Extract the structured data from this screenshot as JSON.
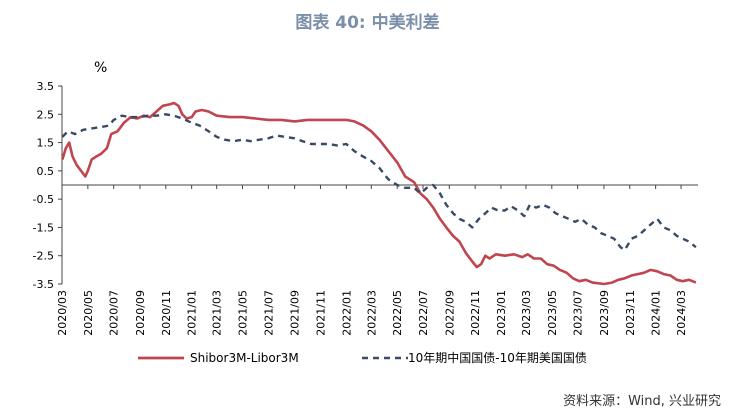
{
  "title": "图表 40: 中美利差",
  "source": "资料来源：Wind, 兴业研究",
  "chart_data": {
    "type": "line",
    "unit": "%",
    "ylim": [
      -3.5,
      3.5
    ],
    "yticks": [
      3.5,
      2.5,
      1.5,
      0.5,
      -0.5,
      -1.5,
      -2.5,
      -3.5
    ],
    "xlim": [
      "2020-03",
      "2024-04"
    ],
    "xticks": [
      "2020/03",
      "2020/05",
      "2020/07",
      "2020/09",
      "2020/11",
      "2021/01",
      "2021/03",
      "2021/05",
      "2021/07",
      "2021/09",
      "2021/11",
      "2022/01",
      "2022/03",
      "2022/05",
      "2022/07",
      "2022/09",
      "2022/11",
      "2023/01",
      "2023/03",
      "2023/05",
      "2023/07",
      "2023/09",
      "2023/11",
      "2024/01",
      "2024/03"
    ],
    "series": [
      {
        "name": "Shibor3M-Libor3M",
        "color": "#c1454f",
        "style": "solid",
        "points": [
          [
            "2020-03-02",
            0.9
          ],
          [
            "2020-03-10",
            1.3
          ],
          [
            "2020-03-18",
            1.5
          ],
          [
            "2020-03-26",
            1.0
          ],
          [
            "2020-04-05",
            0.7
          ],
          [
            "2020-04-15",
            0.5
          ],
          [
            "2020-04-25",
            0.3
          ],
          [
            "2020-05-01",
            0.5
          ],
          [
            "2020-05-10",
            0.9
          ],
          [
            "2020-05-20",
            1.0
          ],
          [
            "2020-06-01",
            1.1
          ],
          [
            "2020-06-15",
            1.3
          ],
          [
            "2020-06-25",
            1.8
          ],
          [
            "2020-07-10",
            1.9
          ],
          [
            "2020-07-25",
            2.2
          ],
          [
            "2020-08-10",
            2.4
          ],
          [
            "2020-08-25",
            2.35
          ],
          [
            "2020-09-10",
            2.45
          ],
          [
            "2020-09-25",
            2.4
          ],
          [
            "2020-10-10",
            2.6
          ],
          [
            "2020-10-25",
            2.8
          ],
          [
            "2020-11-10",
            2.85
          ],
          [
            "2020-11-20",
            2.9
          ],
          [
            "2020-12-01",
            2.8
          ],
          [
            "2020-12-10",
            2.5
          ],
          [
            "2020-12-20",
            2.35
          ],
          [
            "2021-01-01",
            2.4
          ],
          [
            "2021-01-10",
            2.6
          ],
          [
            "2021-01-25",
            2.65
          ],
          [
            "2021-02-10",
            2.6
          ],
          [
            "2021-03-01",
            2.45
          ],
          [
            "2021-04-01",
            2.4
          ],
          [
            "2021-05-01",
            2.4
          ],
          [
            "2021-06-01",
            2.35
          ],
          [
            "2021-07-01",
            2.3
          ],
          [
            "2021-08-01",
            2.3
          ],
          [
            "2021-09-01",
            2.25
          ],
          [
            "2021-10-01",
            2.3
          ],
          [
            "2021-11-01",
            2.3
          ],
          [
            "2021-12-01",
            2.3
          ],
          [
            "2022-01-01",
            2.3
          ],
          [
            "2022-01-20",
            2.25
          ],
          [
            "2022-02-10",
            2.1
          ],
          [
            "2022-03-01",
            1.9
          ],
          [
            "2022-03-20",
            1.6
          ],
          [
            "2022-04-10",
            1.2
          ],
          [
            "2022-05-01",
            0.8
          ],
          [
            "2022-05-20",
            0.3
          ],
          [
            "2022-06-10",
            0.1
          ],
          [
            "2022-06-25",
            -0.3
          ],
          [
            "2022-07-10",
            -0.5
          ],
          [
            "2022-07-25",
            -0.8
          ],
          [
            "2022-08-10",
            -1.2
          ],
          [
            "2022-08-25",
            -1.5
          ],
          [
            "2022-09-10",
            -1.8
          ],
          [
            "2022-09-25",
            -2.0
          ],
          [
            "2022-10-10",
            -2.4
          ],
          [
            "2022-10-25",
            -2.7
          ],
          [
            "2022-11-05",
            -2.9
          ],
          [
            "2022-11-15",
            -2.8
          ],
          [
            "2022-11-25",
            -2.5
          ],
          [
            "2022-12-05",
            -2.6
          ],
          [
            "2022-12-20",
            -2.45
          ],
          [
            "2023-01-10",
            -2.5
          ],
          [
            "2023-02-01",
            -2.45
          ],
          [
            "2023-02-20",
            -2.55
          ],
          [
            "2023-03-05",
            -2.45
          ],
          [
            "2023-03-20",
            -2.6
          ],
          [
            "2023-04-05",
            -2.6
          ],
          [
            "2023-04-20",
            -2.8
          ],
          [
            "2023-05-05",
            -2.85
          ],
          [
            "2023-05-20",
            -3.0
          ],
          [
            "2023-06-05",
            -3.1
          ],
          [
            "2023-06-20",
            -3.3
          ],
          [
            "2023-07-05",
            -3.4
          ],
          [
            "2023-07-20",
            -3.35
          ],
          [
            "2023-08-05",
            -3.45
          ],
          [
            "2023-09-01",
            -3.5
          ],
          [
            "2023-09-20",
            -3.45
          ],
          [
            "2023-10-05",
            -3.35
          ],
          [
            "2023-10-20",
            -3.3
          ],
          [
            "2023-11-05",
            -3.2
          ],
          [
            "2023-11-20",
            -3.15
          ],
          [
            "2023-12-05",
            -3.1
          ],
          [
            "2023-12-20",
            -3.0
          ],
          [
            "2024-01-05",
            -3.05
          ],
          [
            "2024-01-20",
            -3.15
          ],
          [
            "2024-02-05",
            -3.2
          ],
          [
            "2024-02-20",
            -3.35
          ],
          [
            "2024-03-05",
            -3.4
          ],
          [
            "2024-03-20",
            -3.35
          ],
          [
            "2024-04-05",
            -3.45
          ]
        ]
      },
      {
        "name": "10年期中国国债-10年期美国国债",
        "color": "#3a4a66",
        "style": "dashed",
        "points": [
          [
            "2020-03-02",
            1.7
          ],
          [
            "2020-03-15",
            1.9
          ],
          [
            "2020-04-01",
            1.8
          ],
          [
            "2020-04-20",
            1.95
          ],
          [
            "2020-05-10",
            2.0
          ],
          [
            "2020-06-01",
            2.05
          ],
          [
            "2020-06-20",
            2.1
          ],
          [
            "2020-07-01",
            2.3
          ],
          [
            "2020-07-20",
            2.45
          ],
          [
            "2020-08-10",
            2.4
          ],
          [
            "2020-09-01",
            2.4
          ],
          [
            "2020-09-20",
            2.45
          ],
          [
            "2020-10-10",
            2.45
          ],
          [
            "2020-11-01",
            2.5
          ],
          [
            "2020-11-20",
            2.45
          ],
          [
            "2020-12-10",
            2.35
          ],
          [
            "2021-01-01",
            2.2
          ],
          [
            "2021-01-20",
            2.1
          ],
          [
            "2021-02-10",
            1.9
          ],
          [
            "2021-03-01",
            1.7
          ],
          [
            "2021-03-20",
            1.6
          ],
          [
            "2021-04-10",
            1.55
          ],
          [
            "2021-05-01",
            1.6
          ],
          [
            "2021-05-20",
            1.55
          ],
          [
            "2021-06-10",
            1.6
          ],
          [
            "2021-07-01",
            1.65
          ],
          [
            "2021-07-20",
            1.75
          ],
          [
            "2021-08-10",
            1.7
          ],
          [
            "2021-09-01",
            1.65
          ],
          [
            "2021-09-20",
            1.55
          ],
          [
            "2021-10-10",
            1.45
          ],
          [
            "2021-11-01",
            1.45
          ],
          [
            "2021-11-20",
            1.45
          ],
          [
            "2021-12-10",
            1.4
          ],
          [
            "2022-01-01",
            1.45
          ],
          [
            "2022-01-20",
            1.2
          ],
          [
            "2022-02-10",
            1.0
          ],
          [
            "2022-03-01",
            0.85
          ],
          [
            "2022-03-20",
            0.6
          ],
          [
            "2022-04-10",
            0.2
          ],
          [
            "2022-05-01",
            0.0
          ],
          [
            "2022-05-20",
            -0.1
          ],
          [
            "2022-06-10",
            -0.1
          ],
          [
            "2022-06-25",
            -0.3
          ],
          [
            "2022-07-10",
            -0.1
          ],
          [
            "2022-07-25",
            0.0
          ],
          [
            "2022-08-10",
            -0.3
          ],
          [
            "2022-08-25",
            -0.7
          ],
          [
            "2022-09-10",
            -1.0
          ],
          [
            "2022-09-25",
            -1.2
          ],
          [
            "2022-10-10",
            -1.3
          ],
          [
            "2022-10-25",
            -1.5
          ],
          [
            "2022-11-10",
            -1.2
          ],
          [
            "2022-11-25",
            -1.0
          ],
          [
            "2022-12-10",
            -0.8
          ],
          [
            "2022-12-25",
            -0.9
          ],
          [
            "2023-01-10",
            -0.9
          ],
          [
            "2023-01-25",
            -0.75
          ],
          [
            "2023-02-10",
            -0.9
          ],
          [
            "2023-02-25",
            -1.1
          ],
          [
            "2023-03-10",
            -0.7
          ],
          [
            "2023-03-25",
            -0.8
          ],
          [
            "2023-04-10",
            -0.7
          ],
          [
            "2023-04-25",
            -0.8
          ],
          [
            "2023-05-10",
            -1.0
          ],
          [
            "2023-05-25",
            -1.1
          ],
          [
            "2023-06-10",
            -1.2
          ],
          [
            "2023-06-25",
            -1.3
          ],
          [
            "2023-07-10",
            -1.2
          ],
          [
            "2023-07-25",
            -1.4
          ],
          [
            "2023-08-10",
            -1.5
          ],
          [
            "2023-08-25",
            -1.7
          ],
          [
            "2023-09-10",
            -1.8
          ],
          [
            "2023-09-25",
            -1.9
          ],
          [
            "2023-10-10",
            -2.2
          ],
          [
            "2023-10-20",
            -2.3
          ],
          [
            "2023-11-05",
            -1.9
          ],
          [
            "2023-11-20",
            -1.8
          ],
          [
            "2023-12-05",
            -1.6
          ],
          [
            "2023-12-20",
            -1.4
          ],
          [
            "2024-01-05",
            -1.2
          ],
          [
            "2024-01-20",
            -1.5
          ],
          [
            "2024-02-05",
            -1.6
          ],
          [
            "2024-02-20",
            -1.8
          ],
          [
            "2024-03-05",
            -1.9
          ],
          [
            "2024-03-20",
            -2.0
          ],
          [
            "2024-04-05",
            -2.2
          ]
        ]
      }
    ],
    "legend": "bottom"
  }
}
